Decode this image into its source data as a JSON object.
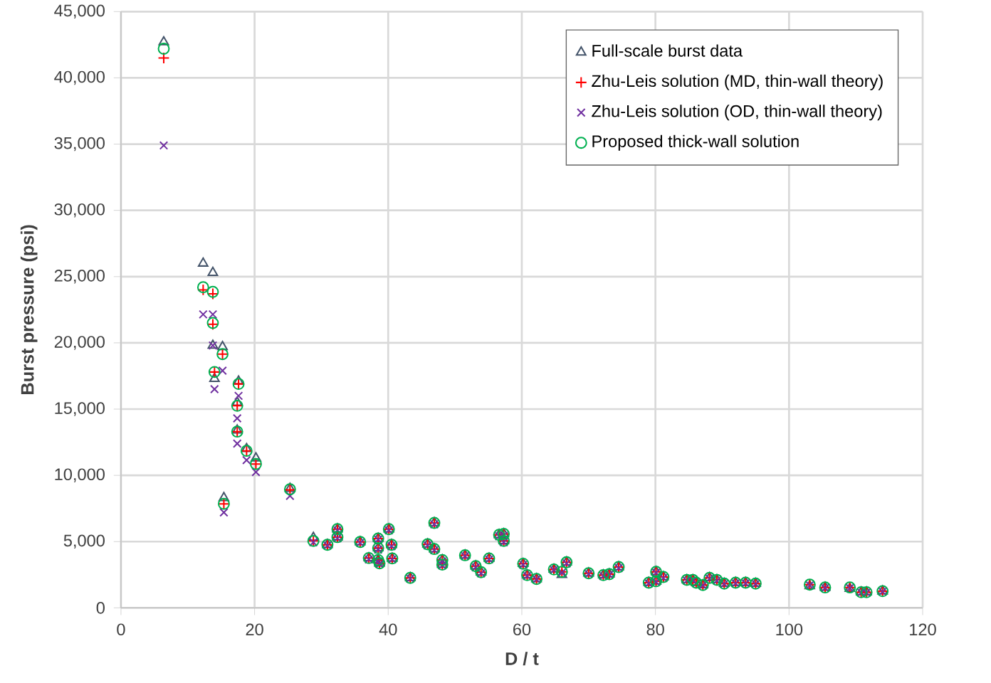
{
  "chart_data": {
    "type": "scatter",
    "xlabel": "D / t",
    "ylabel": "Burst pressure (psi)",
    "x": [
      6.4,
      12.3,
      13.75,
      13.75,
      15.2,
      14.0,
      17.6,
      17.4,
      17.4,
      18.8,
      20.2,
      25.3,
      15.4,
      28.8,
      30.9,
      32.4,
      32.4,
      35.8,
      37.1,
      38.5,
      38.5,
      38.5,
      38.7,
      40.1,
      40.5,
      40.6,
      43.3,
      46.9,
      45.9,
      46.9,
      48.1,
      48.1,
      51.5,
      53.1,
      53.9,
      55.1,
      56.6,
      57.3,
      57.3,
      60.2,
      60.8,
      62.2,
      64.8,
      66.0,
      66.7,
      70.0,
      72.2,
      73.1,
      74.5,
      79.0,
      80.1,
      80.1,
      81.2,
      84.7,
      85.6,
      86.1,
      87.1,
      88.1,
      89.2,
      90.3,
      92.0,
      93.5,
      95.0,
      103.1,
      105.4,
      109.1,
      110.8,
      111.6,
      114.0
    ],
    "series": [
      {
        "name": "Full-scale burst data",
        "color": "#44546a",
        "marker": "triangle",
        "values": [
          42700,
          26000,
          25300,
          19800,
          19700,
          17300,
          17100,
          15500,
          13400,
          12000,
          11300,
          9000,
          8300,
          5300,
          4760,
          5940,
          5340,
          4970,
          3760,
          5230,
          4510,
          3610,
          3360,
          5940,
          4760,
          3730,
          2260,
          6410,
          4800,
          4440,
          3610,
          3260,
          3970,
          3150,
          2690,
          3730,
          5510,
          5580,
          5050,
          3330,
          2470,
          2180,
          2900,
          2500,
          3440,
          2610,
          2470,
          2540,
          3080,
          1900,
          2720,
          2010,
          2330,
          2110,
          2110,
          1900,
          1720,
          2260,
          2110,
          1830,
          1900,
          1900,
          1830,
          1650,
          1540,
          1450,
          1180,
          1180,
          1260
        ]
      },
      {
        "name": "Zhu-Leis solution (MD, thin-wall theory)",
        "color": "#ff0000",
        "marker": "cross",
        "values": [
          41500,
          24000,
          23700,
          21400,
          19150,
          17800,
          16900,
          15250,
          13300,
          11850,
          10850,
          8900,
          7850,
          5050,
          4760,
          5940,
          5340,
          4970,
          3760,
          5230,
          4510,
          3610,
          3360,
          5940,
          4760,
          3730,
          2260,
          6410,
          4800,
          4440,
          3610,
          3260,
          3970,
          3150,
          2690,
          3730,
          5510,
          5580,
          5050,
          3330,
          2470,
          2180,
          2900,
          2720,
          3440,
          2610,
          2470,
          2540,
          3080,
          1900,
          2720,
          2010,
          2330,
          2110,
          2110,
          1900,
          1720,
          2260,
          2110,
          1830,
          1900,
          1900,
          1830,
          1750,
          1540,
          1540,
          1180,
          1180,
          1260
        ]
      },
      {
        "name": "Zhu-Leis solution (OD, thin-wall theory)",
        "color": "#7030a0",
        "marker": "x",
        "values": [
          34900,
          22150,
          22150,
          19800,
          17900,
          16500,
          16000,
          14300,
          12400,
          11150,
          10250,
          8450,
          7200,
          4950,
          4700,
          5850,
          5250,
          4900,
          3650,
          5150,
          4400,
          3500,
          3300,
          5850,
          4650,
          3650,
          2200,
          6300,
          4700,
          4350,
          3500,
          3200,
          3900,
          3050,
          2600,
          3650,
          5400,
          5450,
          4950,
          3250,
          2400,
          2150,
          2850,
          2650,
          3350,
          2550,
          2400,
          2500,
          3000,
          1850,
          2650,
          1950,
          2250,
          2050,
          2050,
          1850,
          1700,
          2200,
          2050,
          1800,
          1850,
          1850,
          1800,
          1700,
          1500,
          1500,
          1150,
          1150,
          1220
        ]
      },
      {
        "name": "Proposed thick-wall solution",
        "color": "#00b050",
        "marker": "circle",
        "values": [
          42200,
          24200,
          23850,
          21500,
          19150,
          17800,
          16900,
          15250,
          13300,
          11850,
          10850,
          8950,
          7850,
          5050,
          4760,
          5940,
          5340,
          4970,
          3760,
          5230,
          4510,
          3610,
          3360,
          5940,
          4760,
          3730,
          2260,
          6410,
          4800,
          4440,
          3610,
          3260,
          3970,
          3150,
          2690,
          3730,
          5510,
          5580,
          5050,
          3330,
          2470,
          2180,
          2900,
          2720,
          3440,
          2610,
          2470,
          2540,
          3080,
          1900,
          2720,
          2010,
          2330,
          2110,
          2110,
          1900,
          1720,
          2260,
          2110,
          1830,
          1900,
          1900,
          1830,
          1750,
          1540,
          1540,
          1180,
          1180,
          1260
        ]
      }
    ],
    "xlim": [
      0,
      120
    ],
    "xticks": [
      0,
      20,
      40,
      60,
      80,
      100,
      120
    ],
    "ylim": [
      0,
      45000
    ],
    "yticks": [
      0,
      {
        "value": 5000,
        "label": "5,000"
      },
      {
        "value": 10000,
        "label": "10,000"
      },
      {
        "value": 15000,
        "label": "15,000"
      },
      {
        "value": 20000,
        "label": "20,000"
      },
      {
        "value": 25000,
        "label": "25,000"
      },
      {
        "value": 30000,
        "label": "30,000"
      },
      {
        "value": 35000,
        "label": "35,000"
      },
      {
        "value": 40000,
        "label": "40,000"
      },
      {
        "value": 45000,
        "label": "45,000"
      }
    ],
    "grid": true,
    "legend": "top right"
  }
}
